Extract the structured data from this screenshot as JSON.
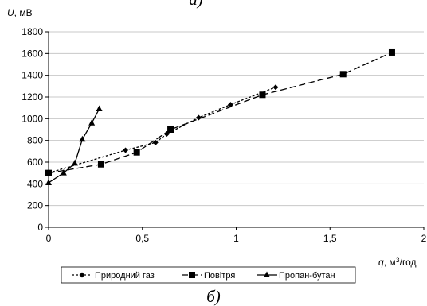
{
  "captions": {
    "top": "а)",
    "bottom": "б)"
  },
  "chart_data": {
    "type": "line",
    "ylabel_symbol": "U",
    "ylabel_unit": ", мВ",
    "xlabel_symbol": "q",
    "xlabel_unit_pre": ", м",
    "xlabel_unit_sup": "3",
    "xlabel_unit_post": "/год",
    "xlim": [
      0,
      2
    ],
    "ylim": [
      0,
      1800
    ],
    "x_ticks": [
      0,
      0.5,
      1,
      1.5,
      2
    ],
    "x_tick_labels": [
      "0",
      "0,5",
      "1",
      "1,5",
      "2"
    ],
    "y_ticks": [
      0,
      200,
      400,
      600,
      800,
      1000,
      1200,
      1400,
      1600,
      1800
    ],
    "y_tick_labels": [
      "0",
      "200",
      "400",
      "600",
      "800",
      "1000",
      "1200",
      "1400",
      "1600",
      "1800"
    ],
    "grid": "horizontal",
    "legend_position": "bottom",
    "series": [
      {
        "name": "Природний газ",
        "marker": "diamond",
        "dash": "3,2",
        "color": "#000000",
        "x": [
          0,
          0.41,
          0.57,
          0.63,
          0.8,
          0.97,
          1.21
        ],
        "y": [
          500,
          710,
          780,
          860,
          1010,
          1130,
          1290
        ]
      },
      {
        "name": "Повітря",
        "marker": "square",
        "dash": "8,4",
        "color": "#000000",
        "x": [
          0,
          0.28,
          0.47,
          0.65,
          1.14,
          1.57,
          1.83
        ],
        "y": [
          500,
          580,
          690,
          900,
          1220,
          1410,
          1610
        ]
      },
      {
        "name": "Пропан-бутан",
        "marker": "triangle",
        "dash": "",
        "color": "#000000",
        "x": [
          0,
          0.08,
          0.14,
          0.18,
          0.23,
          0.27
        ],
        "y": [
          410,
          500,
          590,
          810,
          960,
          1090
        ]
      }
    ]
  }
}
